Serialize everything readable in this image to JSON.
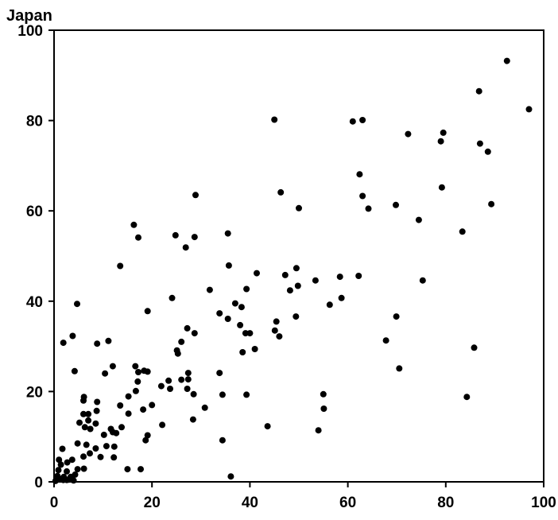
{
  "chart_data": {
    "type": "scatter",
    "title": "",
    "xlabel": "",
    "ylabel": "Japan",
    "xlim": [
      0,
      100
    ],
    "ylim": [
      0,
      100
    ],
    "xticks": [
      "0",
      "20",
      "40",
      "60",
      "80",
      "100"
    ],
    "yticks": [
      "0",
      "20",
      "40",
      "60",
      "80",
      "100"
    ],
    "grid": false,
    "marker_color": "#000000",
    "series": [
      {
        "points": [
          [
            92.5,
            93.2
          ],
          [
            97.0,
            82.5
          ],
          [
            86.8,
            86.5
          ],
          [
            45.0,
            80.2
          ],
          [
            61.0,
            79.8
          ],
          [
            63.0,
            80.1
          ],
          [
            72.3,
            77.0
          ],
          [
            79.5,
            77.3
          ],
          [
            79.0,
            75.4
          ],
          [
            87.0,
            74.9
          ],
          [
            88.6,
            73.1
          ],
          [
            62.4,
            68.1
          ],
          [
            79.2,
            65.2
          ],
          [
            28.9,
            63.5
          ],
          [
            46.3,
            64.1
          ],
          [
            63.0,
            63.3
          ],
          [
            64.2,
            60.5
          ],
          [
            50.0,
            60.6
          ],
          [
            69.8,
            61.3
          ],
          [
            89.3,
            61.5
          ],
          [
            74.5,
            58.0
          ],
          [
            16.3,
            56.9
          ],
          [
            17.2,
            54.1
          ],
          [
            24.8,
            54.6
          ],
          [
            28.7,
            54.2
          ],
          [
            35.5,
            55.0
          ],
          [
            83.4,
            55.4
          ],
          [
            26.9,
            51.9
          ],
          [
            13.5,
            47.8
          ],
          [
            35.7,
            47.9
          ],
          [
            49.5,
            47.3
          ],
          [
            41.4,
            46.2
          ],
          [
            47.2,
            45.8
          ],
          [
            58.4,
            45.4
          ],
          [
            62.2,
            45.6
          ],
          [
            53.4,
            44.6
          ],
          [
            49.8,
            43.4
          ],
          [
            75.3,
            44.6
          ],
          [
            31.8,
            42.5
          ],
          [
            48.2,
            42.4
          ],
          [
            39.3,
            42.7
          ],
          [
            4.7,
            39.4
          ],
          [
            19.1,
            37.8
          ],
          [
            24.1,
            40.7
          ],
          [
            37.0,
            39.5
          ],
          [
            38.3,
            38.7
          ],
          [
            56.3,
            39.2
          ],
          [
            58.7,
            40.7
          ],
          [
            33.8,
            37.3
          ],
          [
            35.5,
            36.1
          ],
          [
            38.0,
            34.7
          ],
          [
            45.4,
            35.5
          ],
          [
            49.4,
            36.6
          ],
          [
            69.9,
            36.6
          ],
          [
            27.2,
            34.0
          ],
          [
            28.7,
            32.9
          ],
          [
            39.1,
            32.9
          ],
          [
            40.0,
            32.9
          ],
          [
            45.1,
            33.5
          ],
          [
            46.0,
            32.2
          ],
          [
            3.8,
            32.3
          ],
          [
            1.9,
            30.8
          ],
          [
            8.8,
            30.6
          ],
          [
            11.1,
            31.2
          ],
          [
            25.1,
            29.1
          ],
          [
            26.0,
            31.0
          ],
          [
            25.3,
            28.4
          ],
          [
            38.5,
            28.7
          ],
          [
            41.0,
            29.4
          ],
          [
            67.8,
            31.3
          ],
          [
            85.8,
            29.7
          ],
          [
            4.2,
            24.5
          ],
          [
            10.4,
            24.0
          ],
          [
            12.0,
            25.6
          ],
          [
            16.6,
            25.6
          ],
          [
            17.2,
            24.3
          ],
          [
            18.4,
            24.6
          ],
          [
            19.1,
            24.4
          ],
          [
            27.4,
            24.1
          ],
          [
            33.8,
            24.1
          ],
          [
            70.5,
            25.1
          ],
          [
            26.0,
            22.6
          ],
          [
            23.4,
            22.4
          ],
          [
            27.4,
            22.7
          ],
          [
            17.1,
            22.2
          ],
          [
            16.7,
            20.1
          ],
          [
            21.9,
            21.2
          ],
          [
            23.7,
            20.6
          ],
          [
            27.2,
            20.6
          ],
          [
            28.5,
            19.4
          ],
          [
            34.4,
            19.3
          ],
          [
            39.3,
            19.3
          ],
          [
            55.0,
            19.4
          ],
          [
            84.3,
            18.8
          ],
          [
            6.1,
            18.8
          ],
          [
            6.0,
            18.0
          ],
          [
            8.8,
            17.7
          ],
          [
            13.5,
            16.9
          ],
          [
            18.2,
            16.0
          ],
          [
            20.0,
            17.0
          ],
          [
            15.2,
            18.9
          ],
          [
            8.7,
            15.7
          ],
          [
            6.0,
            15.0
          ],
          [
            7.0,
            15.0
          ],
          [
            15.2,
            15.1
          ],
          [
            55.1,
            16.2
          ],
          [
            30.8,
            16.4
          ],
          [
            5.2,
            13.1
          ],
          [
            7.0,
            13.6
          ],
          [
            8.5,
            12.9
          ],
          [
            6.3,
            12.1
          ],
          [
            7.4,
            11.7
          ],
          [
            11.6,
            11.7
          ],
          [
            13.8,
            12.1
          ],
          [
            22.1,
            12.6
          ],
          [
            28.4,
            13.8
          ],
          [
            54.0,
            11.4
          ],
          [
            43.6,
            12.3
          ],
          [
            10.2,
            10.4
          ],
          [
            12.7,
            10.8
          ],
          [
            12.0,
            11.0
          ],
          [
            19.1,
            10.3
          ],
          [
            18.7,
            9.2
          ],
          [
            34.4,
            9.2
          ],
          [
            4.8,
            8.5
          ],
          [
            6.6,
            8.2
          ],
          [
            8.5,
            7.4
          ],
          [
            10.7,
            7.9
          ],
          [
            12.3,
            7.8
          ],
          [
            7.3,
            6.3
          ],
          [
            9.5,
            5.5
          ],
          [
            12.2,
            5.4
          ],
          [
            6.0,
            5.6
          ],
          [
            1.7,
            7.3
          ],
          [
            1.0,
            4.9
          ],
          [
            3.7,
            4.9
          ],
          [
            2.7,
            4.3
          ],
          [
            1.4,
            3.8
          ],
          [
            0.9,
            2.6
          ],
          [
            2.6,
            2.3
          ],
          [
            4.8,
            2.8
          ],
          [
            6.1,
            2.9
          ],
          [
            15.0,
            2.8
          ],
          [
            17.7,
            2.8
          ],
          [
            0.7,
            1.3
          ],
          [
            2.0,
            1.1
          ],
          [
            3.4,
            1.1
          ],
          [
            4.3,
            1.6
          ],
          [
            1.1,
            0.6
          ],
          [
            1.9,
            0.4
          ],
          [
            2.6,
            0.4
          ],
          [
            3.0,
            0.5
          ],
          [
            0.3,
            0.2
          ],
          [
            4.0,
            0.3
          ],
          [
            36.1,
            1.2
          ]
        ]
      }
    ]
  }
}
